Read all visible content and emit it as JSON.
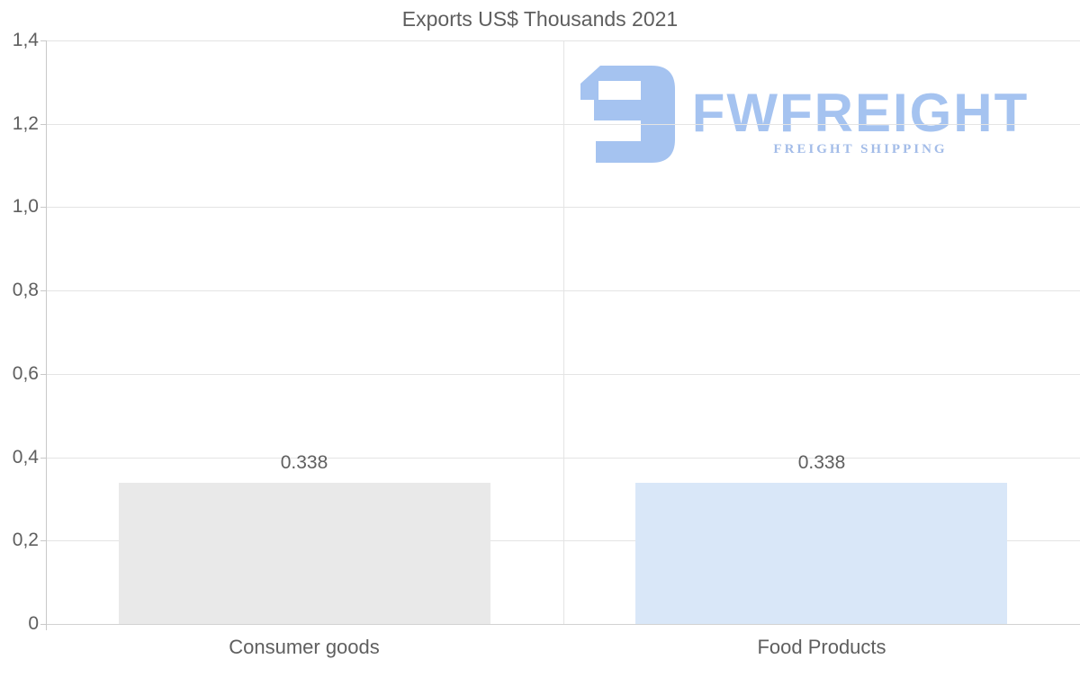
{
  "chart_data": {
    "type": "bar",
    "title": "Exports US$ Thousands 2021",
    "categories": [
      "Consumer goods",
      "Food Products"
    ],
    "values": [
      0.338,
      0.338
    ],
    "value_labels": [
      "0.338",
      "0.338"
    ],
    "bar_colors": [
      "#e9e9e9",
      "#d9e7f8"
    ],
    "ylim": [
      0,
      1.4
    ],
    "yticks": [
      {
        "v": 0,
        "label": "0"
      },
      {
        "v": 0.2,
        "label": "0,2"
      },
      {
        "v": 0.4,
        "label": "0,4"
      },
      {
        "v": 0.6,
        "label": "0,6"
      },
      {
        "v": 0.8,
        "label": "0,8"
      },
      {
        "v": 1.0,
        "label": "1,0"
      },
      {
        "v": 1.2,
        "label": "1,2"
      },
      {
        "v": 1.4,
        "label": "1,4"
      }
    ],
    "grid": true,
    "legend": false,
    "xlabel": "",
    "ylabel": ""
  },
  "logo": {
    "wordmark": "FWFREIGHT",
    "subtitle": "FREIGHT SHIPPING",
    "color": "#a5c3f0",
    "subtitle_color": "#a3bce8"
  },
  "colors": {
    "title_text": "#5e5e5e",
    "axis_text": "#5f5f5f",
    "gridline": "#e4e4e4",
    "zero_line": "#d2d2d2",
    "axis_line": "#c9c9c9",
    "background": "#ffffff"
  }
}
